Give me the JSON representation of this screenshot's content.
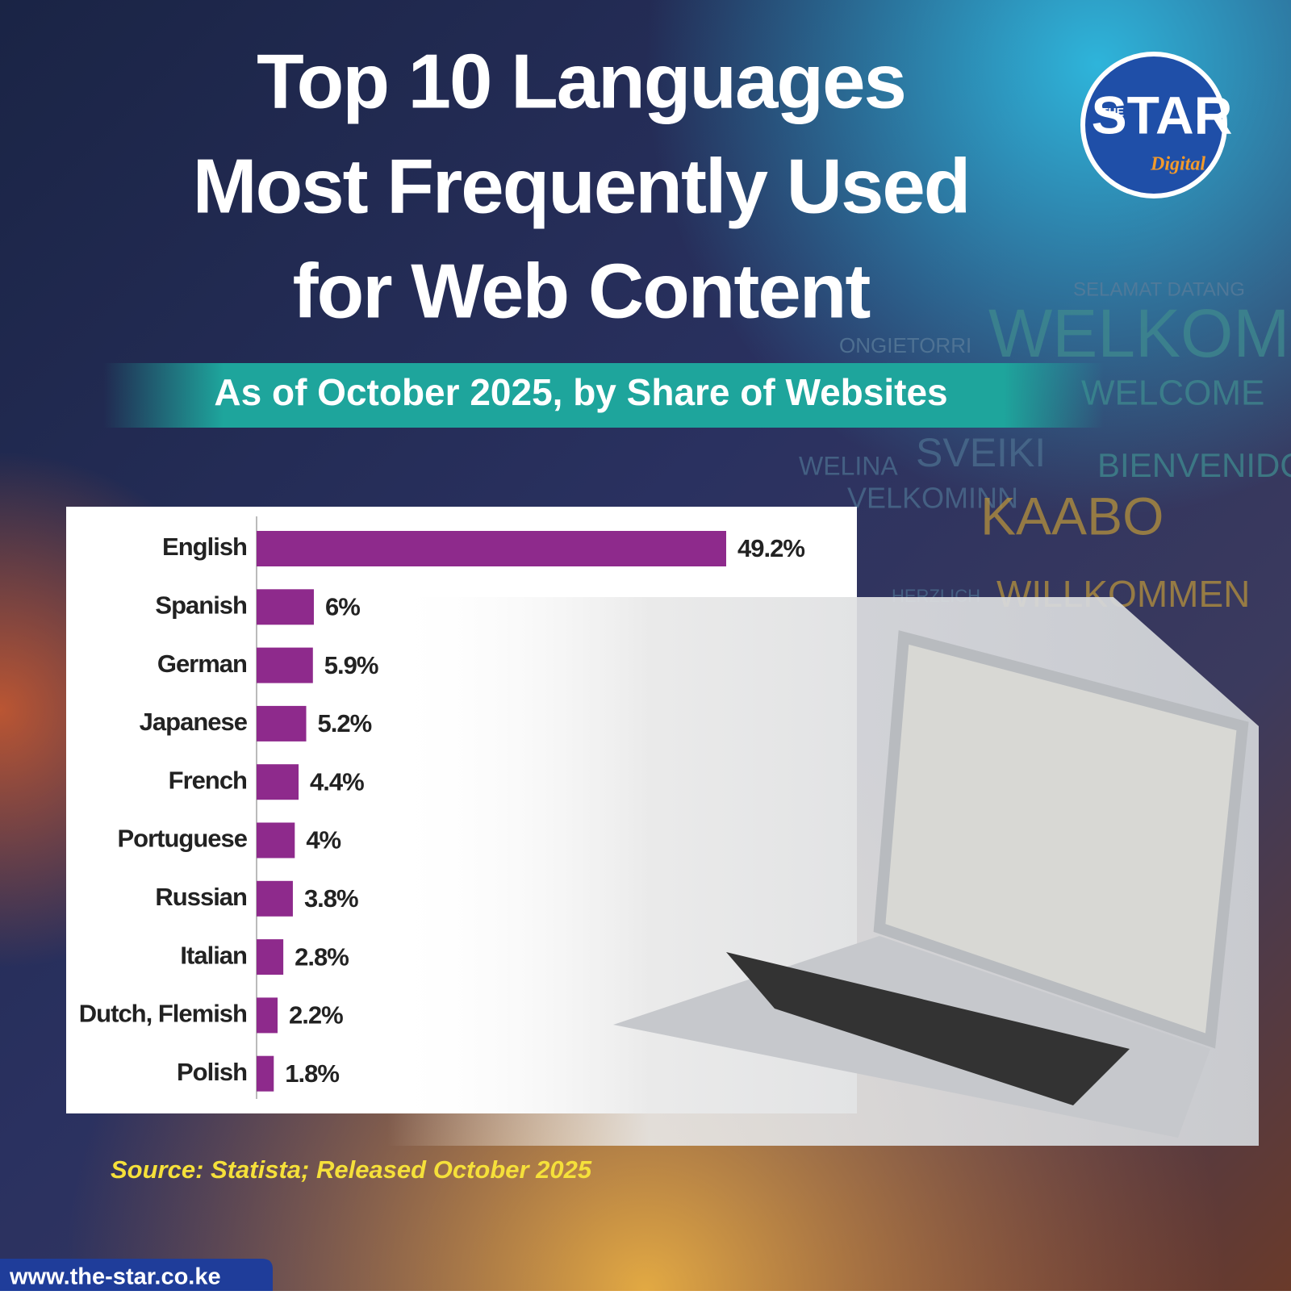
{
  "chart_data": {
    "type": "hbar",
    "title_lines": [
      "Top 10 Languages",
      "Most Frequently Used",
      "for Web Content"
    ],
    "subtitle": "As of October 2025, by Share of Websites",
    "categories": [
      "English",
      "Spanish",
      "German",
      "Japanese",
      "French",
      "Portuguese",
      "Russian",
      "Italian",
      "Dutch, Flemish",
      "Polish"
    ],
    "values": [
      49.2,
      6,
      5.9,
      5.2,
      4.4,
      4,
      3.8,
      2.8,
      2.2,
      1.8
    ],
    "value_labels": [
      "49.2%",
      "6%",
      "5.9%",
      "5.2%",
      "4.4%",
      "4%",
      "3.8%",
      "2.8%",
      "2.2%",
      "1.8%"
    ],
    "color": "#8e2a8c",
    "source": "Source: Statista; Released October 2025"
  },
  "branding": {
    "logo_top": "THE",
    "logo_main": "STAR",
    "logo_sub": "Digital",
    "website": "www.the-star.co.ke"
  },
  "background_words": [
    "WELKOM",
    "WELCOME",
    "SELAMAT DATANG",
    "ONGIETORRI",
    "SVEIKI",
    "BIENVENIDO",
    "VELKOMINN",
    "WELINA",
    "KAABO",
    "WILLKOMMEN",
    "HERZLICH"
  ]
}
